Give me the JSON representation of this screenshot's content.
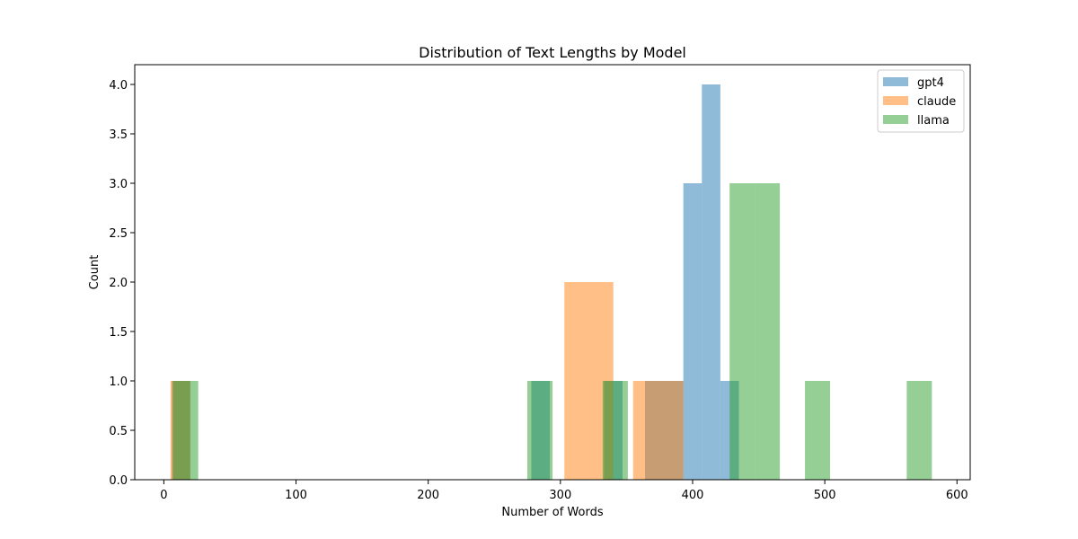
{
  "chart_data": {
    "type": "bar",
    "chart_kind": "histogram",
    "title": "Distribution of Text Lengths by Model",
    "xlabel": "Number of Words",
    "ylabel": "Count",
    "xlim": [
      -22,
      610
    ],
    "ylim": [
      0,
      4.2
    ],
    "xticks": [
      0,
      100,
      200,
      300,
      400,
      500,
      600
    ],
    "yticks": [
      0.0,
      0.5,
      1.0,
      1.5,
      2.0,
      2.5,
      3.0,
      3.5,
      4.0
    ],
    "grid": false,
    "legend_position": "top-right",
    "bar_opacity": 0.5,
    "series": [
      {
        "name": "gpt4",
        "color": "#1f77b4",
        "bins": [
          {
            "x0": 6,
            "x1": 20,
            "count": 1
          },
          {
            "x0": 278,
            "x1": 292,
            "count": 1
          },
          {
            "x0": 333,
            "x1": 347,
            "count": 1
          },
          {
            "x0": 364,
            "x1": 379,
            "count": 1
          },
          {
            "x0": 379,
            "x1": 393,
            "count": 1
          },
          {
            "x0": 393,
            "x1": 407,
            "count": 3
          },
          {
            "x0": 407,
            "x1": 421,
            "count": 4
          },
          {
            "x0": 421,
            "x1": 435,
            "count": 1
          }
        ]
      },
      {
        "name": "claude",
        "color": "#ff7f0e",
        "bins": [
          {
            "x0": 5,
            "x1": 20,
            "count": 1
          },
          {
            "x0": 303,
            "x1": 333,
            "count": 2
          },
          {
            "x0": 333,
            "x1": 340,
            "count": 2
          },
          {
            "x0": 355,
            "x1": 393,
            "count": 1
          }
        ]
      },
      {
        "name": "llama",
        "color": "#2ca02c",
        "bins": [
          {
            "x0": 7,
            "x1": 26,
            "count": 1
          },
          {
            "x0": 275,
            "x1": 294,
            "count": 1
          },
          {
            "x0": 332,
            "x1": 351,
            "count": 1
          },
          {
            "x0": 428,
            "x1": 447,
            "count": 3
          },
          {
            "x0": 447,
            "x1": 466,
            "count": 3
          },
          {
            "x0": 485,
            "x1": 504,
            "count": 1
          },
          {
            "x0": 562,
            "x1": 581,
            "count": 1
          }
        ]
      }
    ]
  }
}
